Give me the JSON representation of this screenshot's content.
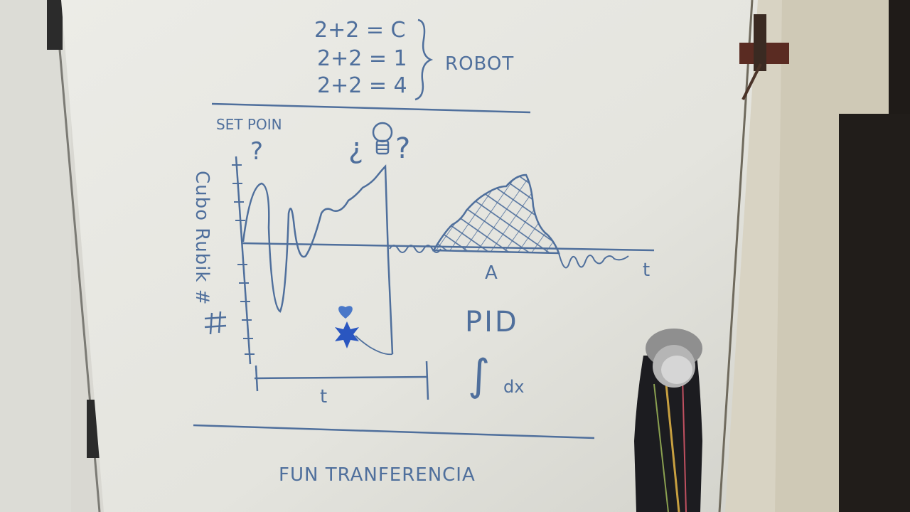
{
  "whiteboard": {
    "equations": [
      "2+2 = C",
      "2+2 = 1",
      "2+2 = 4"
    ],
    "equations_label": "ROBOT",
    "setpoint_label": "SET POIN",
    "setpoint_mark": "?",
    "idea_mark_open": "¿",
    "idea_mark_close": "?",
    "y_axis_label": "Cubo Rubik #",
    "x_axis_label": "t",
    "peak_label": "A",
    "time_span_label": "t",
    "pid_label": "PID",
    "integral_symbol": "∫",
    "integral_suffix": "dx",
    "bottom_label": "FUN TRANFERENCIA"
  },
  "colors": {
    "ink": "#4f6f9c",
    "board": "#e9e9e4",
    "frame": "#d9d5c8",
    "door_dark": "#1a1715",
    "knob": "#9a9a9a",
    "sticker": "#2a56c0"
  },
  "icons": [
    "lightbulb-icon",
    "heart-icon",
    "star-icon",
    "hinge-icon",
    "door-knob-icon"
  ]
}
